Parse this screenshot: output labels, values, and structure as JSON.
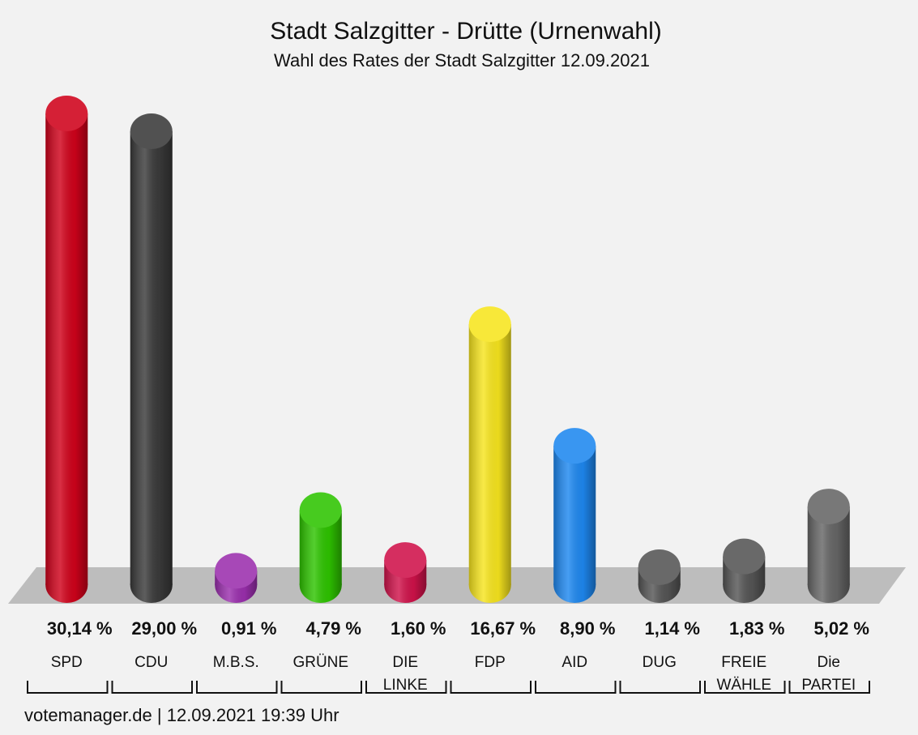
{
  "chart_data": {
    "type": "bar",
    "title": "Stadt Salzgitter - Drütte (Urnenwahl)",
    "subtitle": "Wahl des Rates der Stadt Salzgitter 12.09.2021",
    "categories": [
      "SPD",
      "CDU",
      "M.B.S.",
      "GRÜNE",
      "DIE LINKE",
      "FDP",
      "AID",
      "DUG",
      "FREIE WÄHLE",
      "Die PARTEI"
    ],
    "values": [
      30.14,
      29.0,
      0.91,
      4.79,
      1.6,
      16.67,
      8.9,
      1.14,
      1.83,
      5.02
    ],
    "value_labels": [
      "30,14 %",
      "29,00 %",
      "0,91 %",
      "4,79 %",
      "1,60 %",
      "16,67 %",
      "8,90 %",
      "1,14 %",
      "1,83 %",
      "5,02 %"
    ],
    "colors": [
      "#d0021b",
      "#3a3a3a",
      "#9b2fae",
      "#2ec400",
      "#d0124a",
      "#f7e51e",
      "#1e88f0",
      "#555555",
      "#555555",
      "#666666"
    ],
    "footer": "votemanager.de | 12.09.2021 19:39 Uhr"
  }
}
